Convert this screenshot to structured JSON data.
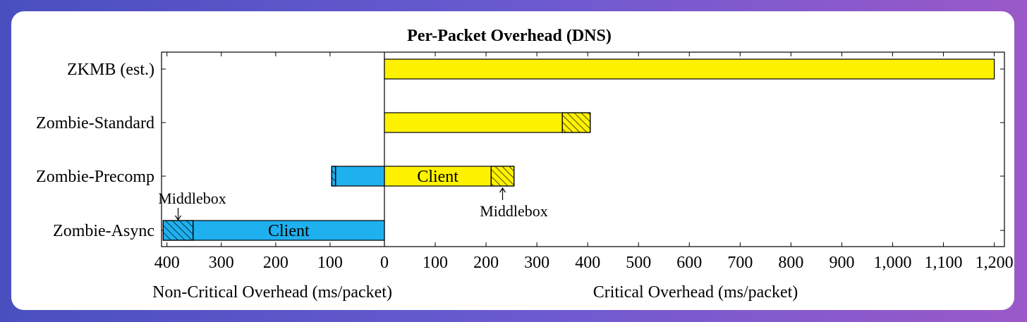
{
  "chart_data": {
    "type": "bar",
    "orientation": "horizontal",
    "title": "Per-Packet Overhead (DNS)",
    "categories": [
      "ZKMB (est.)",
      "Zombie-Standard",
      "Zombie-Precomp",
      "Zombie-Async"
    ],
    "left_axis": {
      "label": "Non-Critical Overhead (ms/packet)",
      "range": [
        0,
        410
      ],
      "ticks": [
        "400",
        "300",
        "200",
        "100",
        "0"
      ],
      "tick_values": [
        400,
        300,
        200,
        100,
        0
      ]
    },
    "right_axis": {
      "label": "Critical Overhead (ms/packet)",
      "range": [
        0,
        1220
      ],
      "ticks": [
        "100",
        "200",
        "300",
        "400",
        "500",
        "600",
        "700",
        "800",
        "900",
        "1,000",
        "1,100",
        "1,200"
      ],
      "tick_values": [
        100,
        200,
        300,
        400,
        500,
        600,
        700,
        800,
        900,
        1000,
        1100,
        1200
      ]
    },
    "critical": [
      {
        "category": "ZKMB (est.)",
        "client": 1200,
        "middlebox": 0
      },
      {
        "category": "Zombie-Standard",
        "client": 350,
        "middlebox": 55
      },
      {
        "category": "Zombie-Precomp",
        "client": 210,
        "middlebox": 45
      },
      {
        "category": "Zombie-Async",
        "client": 0,
        "middlebox": 0
      }
    ],
    "non_critical": [
      {
        "category": "ZKMB (est.)",
        "client": 0,
        "middlebox": 0
      },
      {
        "category": "Zombie-Standard",
        "client": 0,
        "middlebox": 0
      },
      {
        "category": "Zombie-Precomp",
        "client": 90,
        "middlebox": 7
      },
      {
        "category": "Zombie-Async",
        "client": 352,
        "middlebox": 55
      }
    ],
    "annotations": {
      "client_label": "Client",
      "middlebox_label": "Middlebox"
    },
    "colors": {
      "critical": "#fff200",
      "non_critical": "#1fb0ef",
      "outline": "#000000"
    },
    "grid": false
  }
}
